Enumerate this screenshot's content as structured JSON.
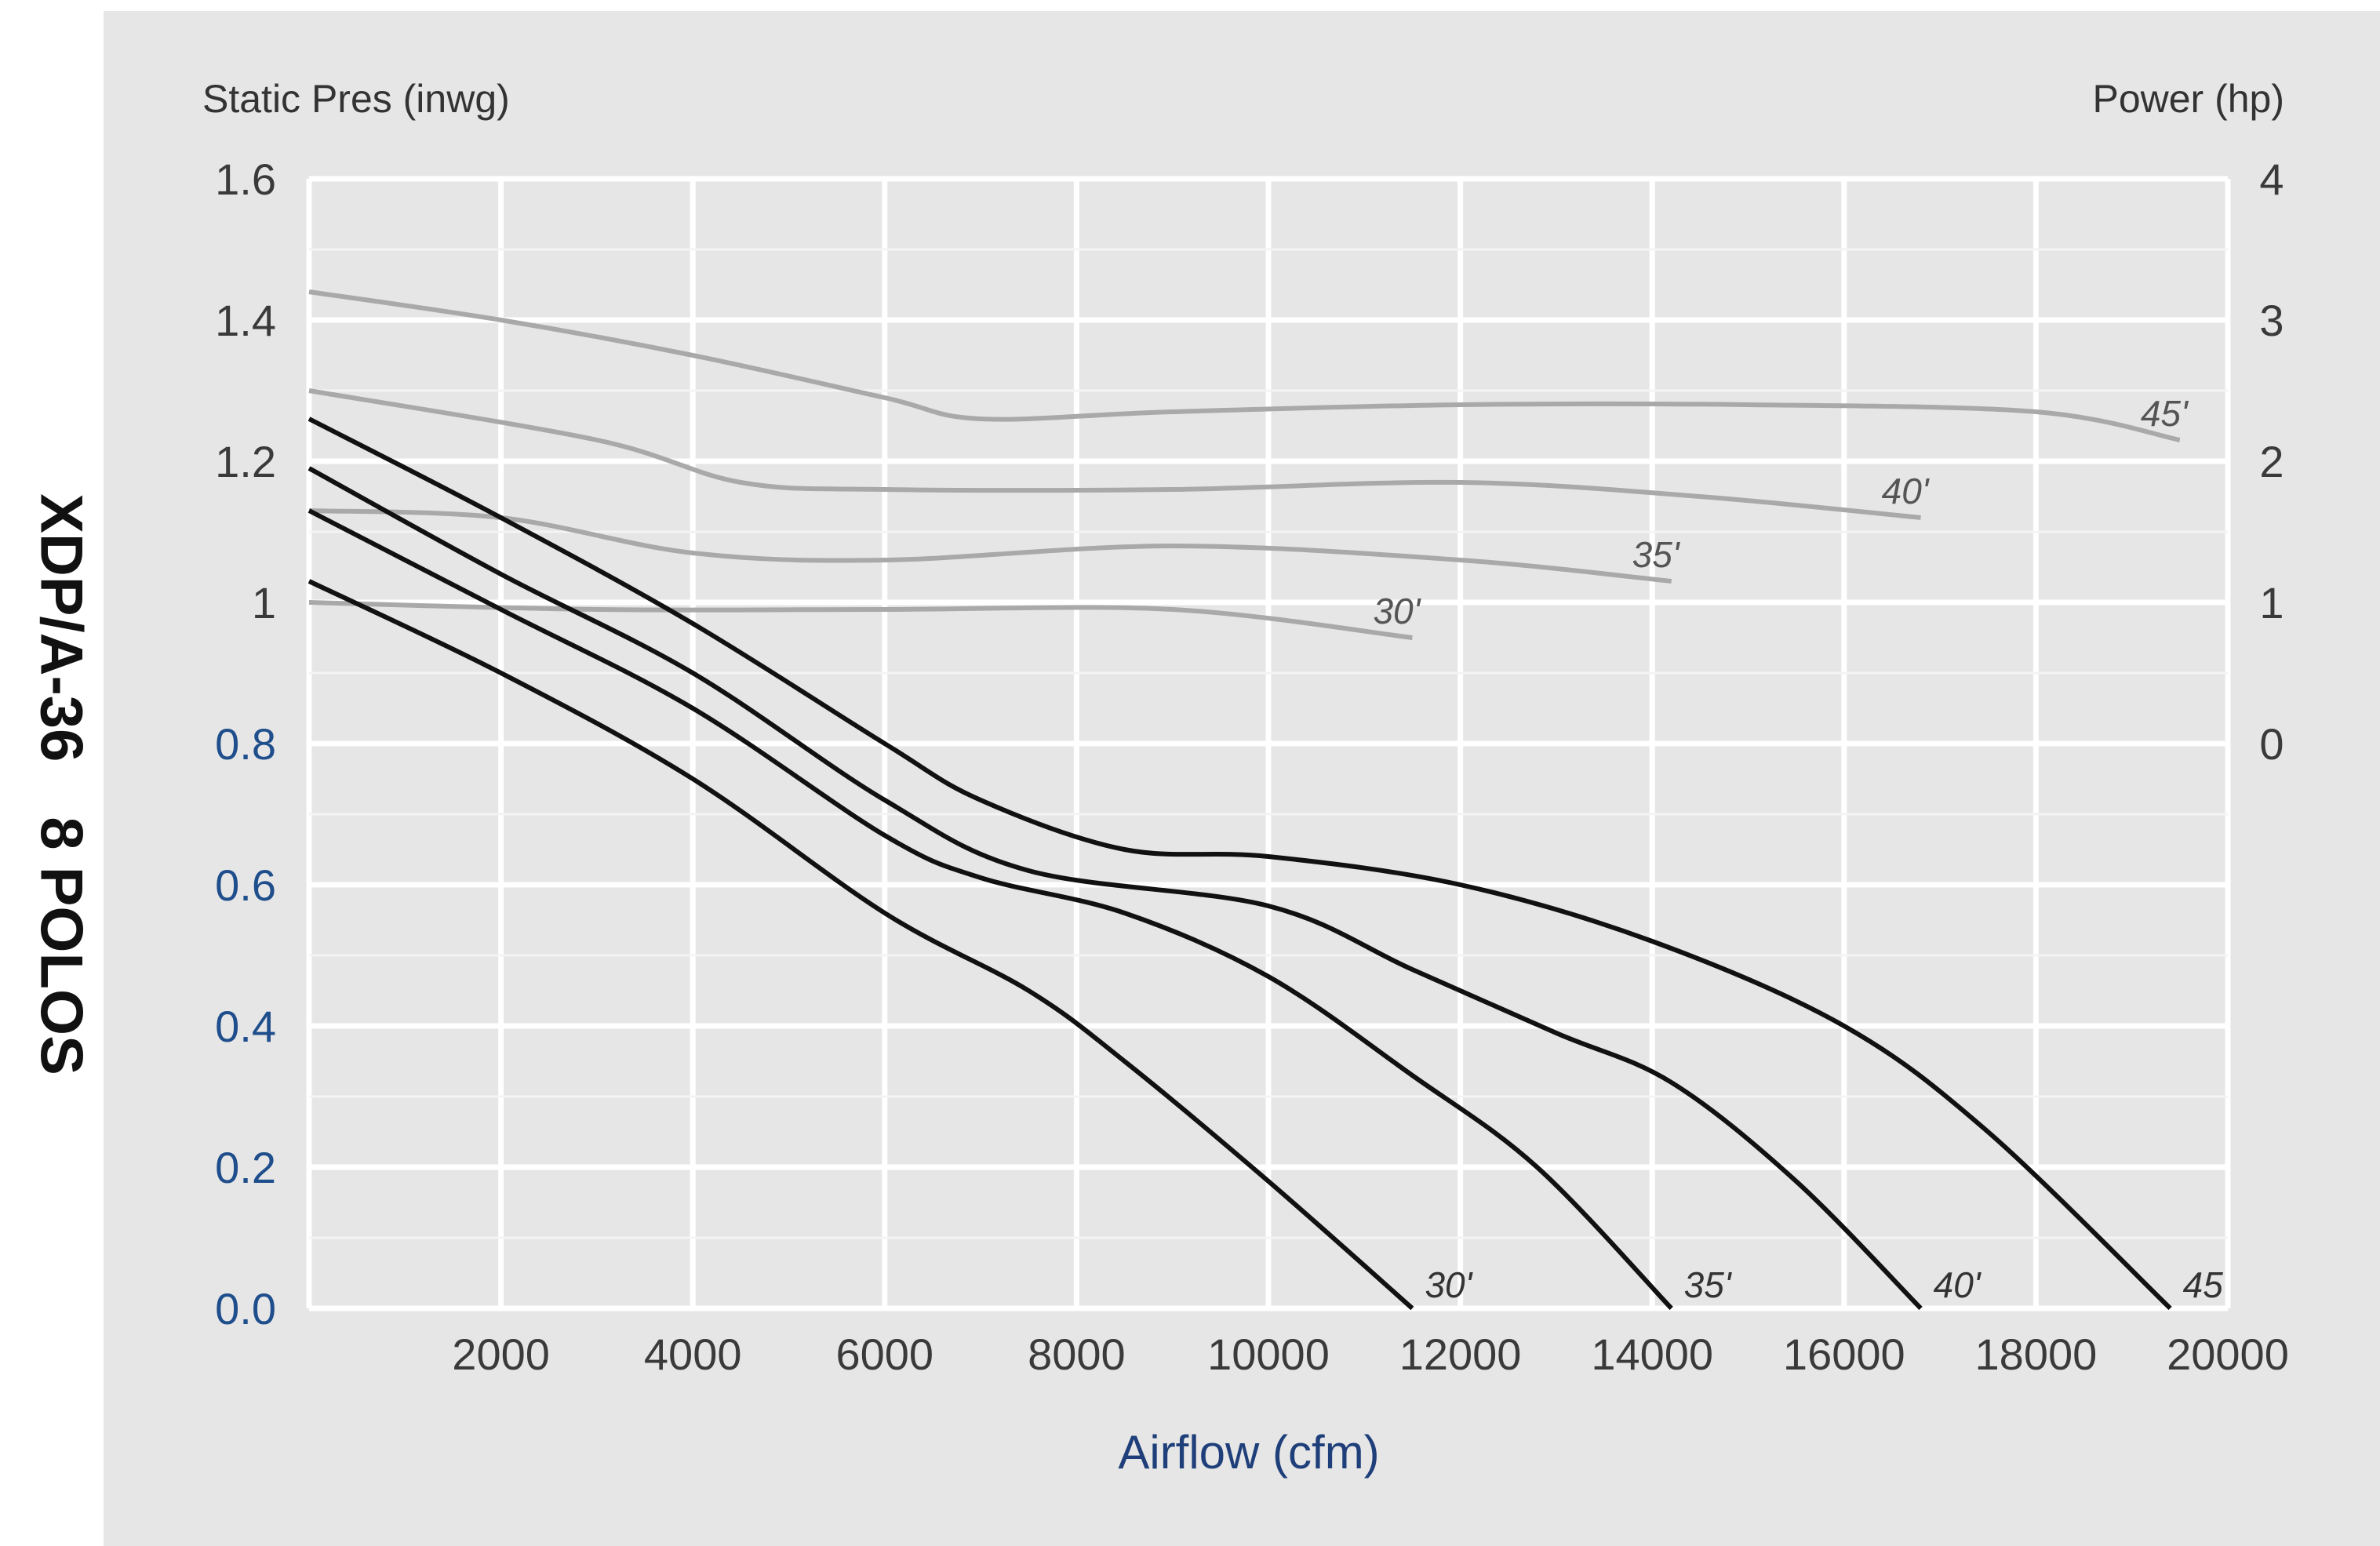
{
  "side_title": {
    "model": "XDP/A-36",
    "poles": "8 POLOS"
  },
  "colors": {
    "panel": "#e6e6e6",
    "grid": "#ffffff",
    "pressure_curve": "#111111",
    "power_curve": "#a9a9a9",
    "left_tick_blue": "#1f4e8c",
    "xlabel": "#1f3f7a"
  },
  "chart_data": {
    "type": "line",
    "xlabel": "Airflow (cfm)",
    "ylabel_left": "Static Pres (inwg)",
    "ylabel_right": "Power (hp)",
    "xlim": [
      0,
      20000
    ],
    "ylim_left": [
      0,
      1.6
    ],
    "ylim_right": [
      0,
      4
    ],
    "grid": true,
    "x_ticks": [
      "2000",
      "4000",
      "6000",
      "8000",
      "10000",
      "12000",
      "14000",
      "16000",
      "18000",
      "20000"
    ],
    "y_ticks_left": [
      "0.0",
      "0.2",
      "0.4",
      "0.6",
      "0.8",
      "1",
      "1.2",
      "1.4",
      "1.6"
    ],
    "y_ticks_right": [
      "0",
      "1",
      "2",
      "3",
      "4"
    ],
    "pressure_series": [
      {
        "name": "30'",
        "points": [
          [
            0,
            1.03
          ],
          [
            2000,
            0.9
          ],
          [
            4000,
            0.75
          ],
          [
            6000,
            0.56
          ],
          [
            7500,
            0.45
          ],
          [
            8500,
            0.35
          ],
          [
            10000,
            0.18
          ],
          [
            11500,
            0.0
          ]
        ]
      },
      {
        "name": "35'",
        "points": [
          [
            0,
            1.13
          ],
          [
            2000,
            0.99
          ],
          [
            4000,
            0.85
          ],
          [
            6000,
            0.67
          ],
          [
            7000,
            0.61
          ],
          [
            8500,
            0.56
          ],
          [
            10000,
            0.47
          ],
          [
            11500,
            0.33
          ],
          [
            12800,
            0.2
          ],
          [
            14200,
            0.0
          ]
        ]
      },
      {
        "name": "40'",
        "points": [
          [
            0,
            1.19
          ],
          [
            2000,
            1.04
          ],
          [
            4000,
            0.9
          ],
          [
            6000,
            0.72
          ],
          [
            7500,
            0.62
          ],
          [
            10000,
            0.57
          ],
          [
            11500,
            0.48
          ],
          [
            13000,
            0.39
          ],
          [
            14200,
            0.32
          ],
          [
            15500,
            0.18
          ],
          [
            16800,
            0.0
          ]
        ]
      },
      {
        "name": "45",
        "points": [
          [
            0,
            1.26
          ],
          [
            2000,
            1.12
          ],
          [
            4000,
            0.97
          ],
          [
            6000,
            0.8
          ],
          [
            7000,
            0.72
          ],
          [
            8500,
            0.65
          ],
          [
            10000,
            0.64
          ],
          [
            12000,
            0.6
          ],
          [
            14000,
            0.52
          ],
          [
            16000,
            0.4
          ],
          [
            17500,
            0.25
          ],
          [
            19400,
            0.0
          ]
        ]
      }
    ],
    "power_series": [
      {
        "name": "30'",
        "points": [
          [
            0,
            1.0
          ],
          [
            3000,
            0.99
          ],
          [
            6000,
            0.99
          ],
          [
            9000,
            0.99
          ],
          [
            11500,
            0.95
          ]
        ]
      },
      {
        "name": "35'",
        "points": [
          [
            0,
            1.13
          ],
          [
            2000,
            1.12
          ],
          [
            4000,
            1.07
          ],
          [
            6000,
            1.06
          ],
          [
            9000,
            1.08
          ],
          [
            12000,
            1.06
          ],
          [
            14200,
            1.03
          ]
        ]
      },
      {
        "name": "40'",
        "points": [
          [
            0,
            1.3
          ],
          [
            3000,
            1.23
          ],
          [
            4500,
            1.17
          ],
          [
            6000,
            1.16
          ],
          [
            9000,
            1.16
          ],
          [
            12000,
            1.17
          ],
          [
            14500,
            1.15
          ],
          [
            16800,
            1.12
          ]
        ]
      },
      {
        "name": "45'",
        "points": [
          [
            0,
            1.44
          ],
          [
            2000,
            1.4
          ],
          [
            4000,
            1.35
          ],
          [
            6000,
            1.29
          ],
          [
            7000,
            1.26
          ],
          [
            9000,
            1.27
          ],
          [
            12000,
            1.28
          ],
          [
            15000,
            1.28
          ],
          [
            18000,
            1.27
          ],
          [
            19500,
            1.23
          ]
        ]
      }
    ]
  }
}
